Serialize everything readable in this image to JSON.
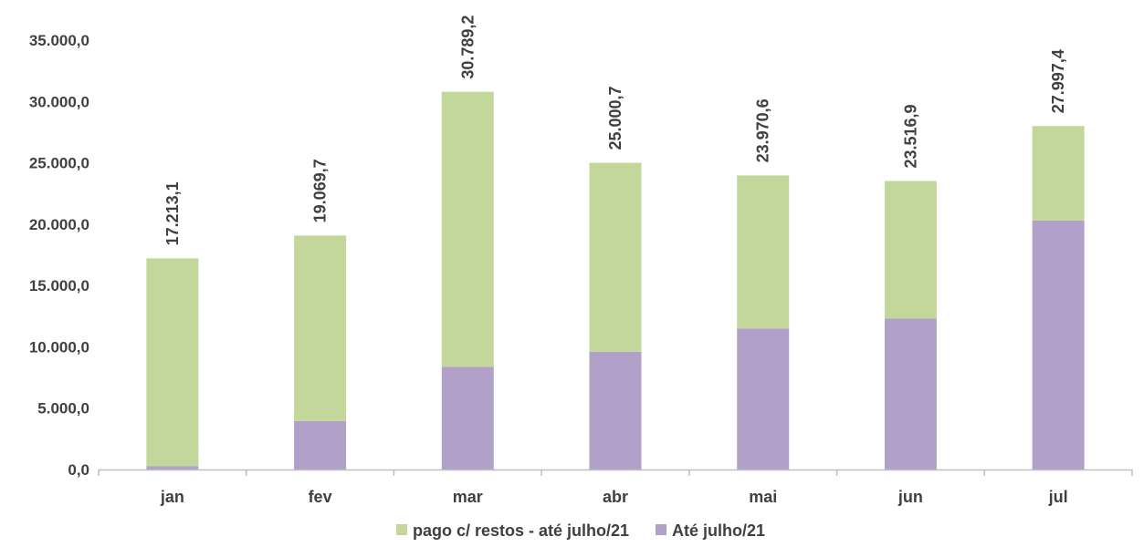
{
  "chart_data": {
    "type": "bar",
    "stacked": true,
    "categories": [
      "jan",
      "fev",
      "mar",
      "abr",
      "mai",
      "jun",
      "jul"
    ],
    "series": [
      {
        "name": "Até julho/21",
        "color": "#b1a0c7",
        "values": [
          280,
          3950,
          8380,
          9600,
          11500,
          12300,
          20300
        ]
      },
      {
        "name": "pago c/ restos - até julho/21",
        "color": "#c4d79b",
        "values": [
          16933.1,
          15119.7,
          22409.2,
          15400.7,
          12470.6,
          11216.9,
          7697.4
        ]
      }
    ],
    "totals": [
      17213.1,
      19069.7,
      30789.2,
      25000.7,
      23970.6,
      23516.9,
      27997.4
    ],
    "total_labels": [
      "17.213,1",
      "19.069,7",
      "30.789,2",
      "25.000,7",
      "23.970,6",
      "23.516,9",
      "27.997,4"
    ],
    "y_ticks": [
      0,
      5000,
      10000,
      15000,
      20000,
      25000,
      30000,
      35000
    ],
    "y_tick_labels": [
      "0,0",
      "5.000,0",
      "10.000,0",
      "15.000,0",
      "20.000,0",
      "25.000,0",
      "30.000,0",
      "35.000,0"
    ],
    "ylim": [
      0,
      35000
    ],
    "grid": false,
    "legend_position": "bottom",
    "legend": [
      {
        "label": "pago c/ restos - até julho/21",
        "color": "#c4d79b"
      },
      {
        "label": "Até julho/21",
        "color": "#b1a0c7"
      }
    ],
    "title": "",
    "xlabel": "",
    "ylabel": ""
  }
}
